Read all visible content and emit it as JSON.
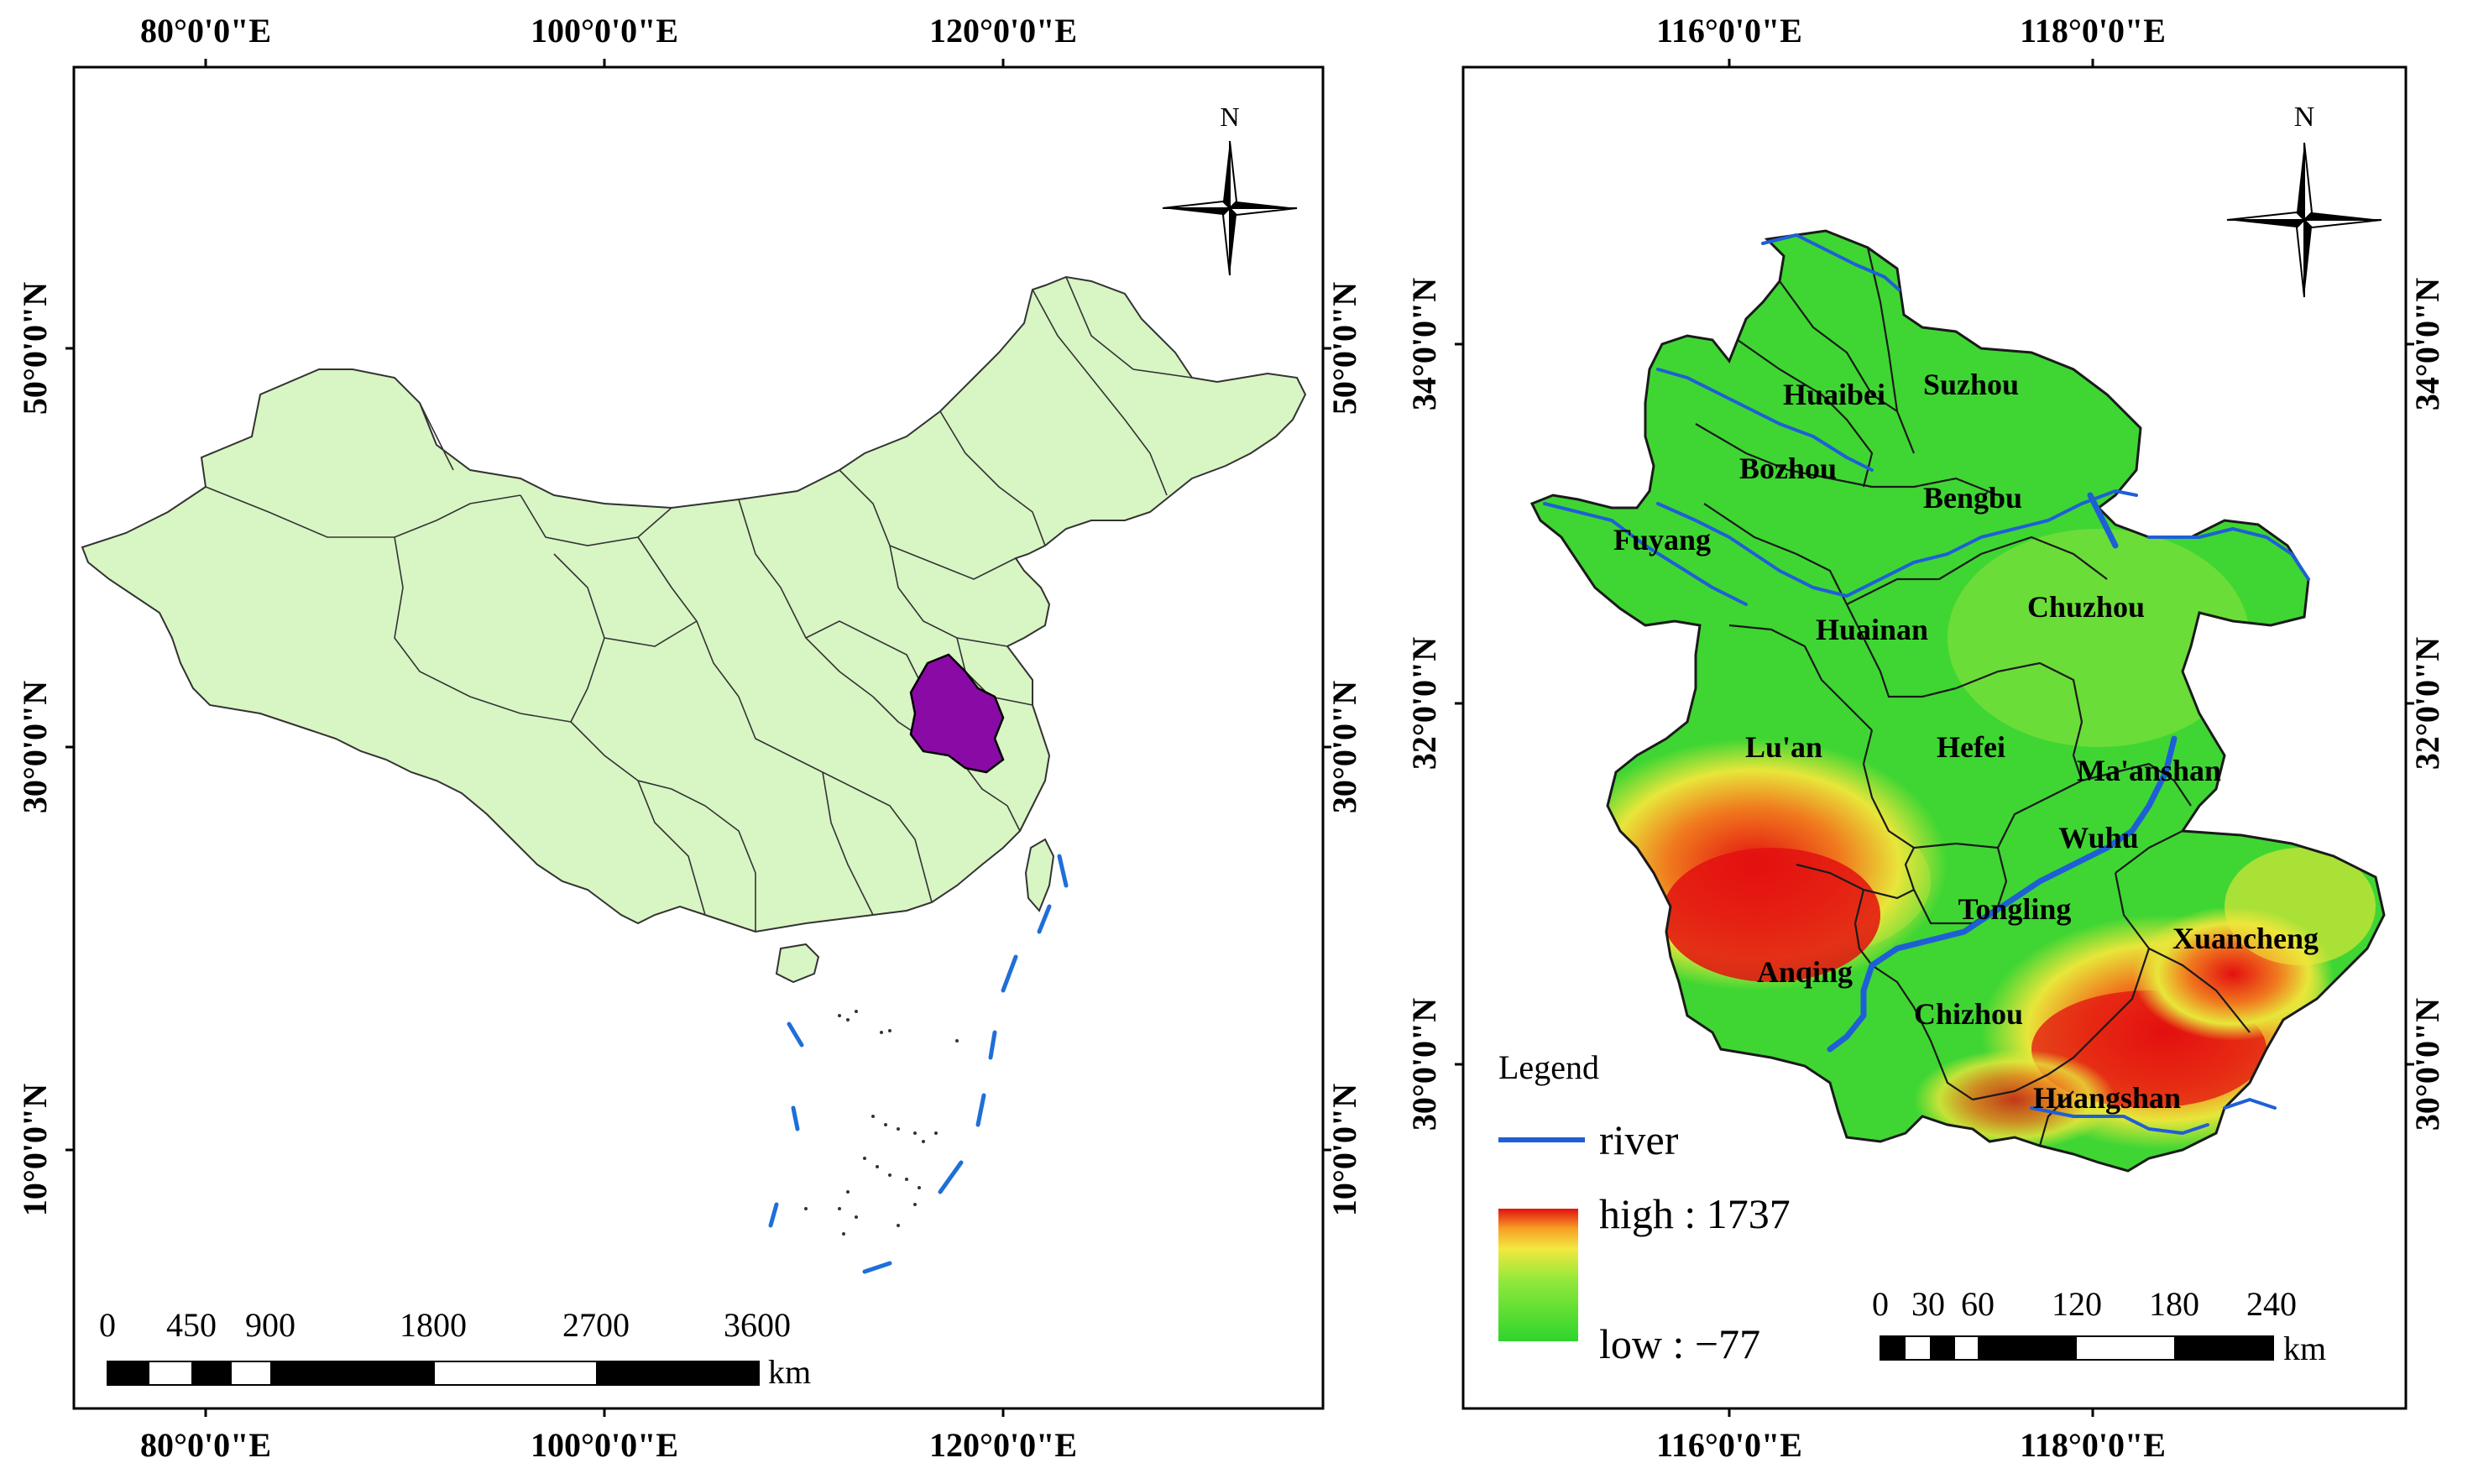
{
  "left_panel": {
    "top_lon_ticks": [
      "80°0'0\"E",
      "100°0'0\"E",
      "120°0'0\"E"
    ],
    "bottom_lon_ticks": [
      "80°0'0\"E",
      "100°0'0\"E",
      "120°0'0\"E"
    ],
    "left_lat_ticks": [
      "50°0'0\"N",
      "30°0'0\"N",
      "10°0'0\"N"
    ],
    "right_lat_ticks": [
      "50°0'0\"N",
      "30°0'0\"N",
      "10°0'0\"N"
    ],
    "north_label": "N",
    "scale_bar": {
      "labels": [
        "0",
        "450",
        "900",
        "1800",
        "2700",
        "3600"
      ],
      "unit": "km"
    },
    "colors": {
      "country": "#d8f5c4",
      "highlight": "#8a0aa6",
      "dash_line": "#1e6fd8"
    }
  },
  "right_panel": {
    "top_lon_ticks": [
      "116°0'0\"E",
      "118°0'0\"E"
    ],
    "bottom_lon_ticks": [
      "116°0'0\"E",
      "118°0'0\"E"
    ],
    "left_lat_ticks": [
      "34°0'0\"N",
      "32°0'0\"N",
      "30°0'0\"N"
    ],
    "right_lat_ticks": [
      "34°0'0\"N",
      "32°0'0\"N",
      "30°0'0\"N"
    ],
    "north_label": "N",
    "cities": [
      "Suzhou",
      "Huaibei",
      "Bozhou",
      "Bengbu",
      "Fuyang",
      "Chuzhou",
      "Huainan",
      "Lu'an",
      "Hefei",
      "Ma'anshan",
      "Wuhu",
      "Tongling",
      "Xuancheng",
      "Anqing",
      "Chizhou",
      "Huangshan"
    ],
    "legend": {
      "title": "Legend",
      "river_label": "river",
      "high_label": "high : 1737",
      "low_label": "low : −77",
      "elevation_high": 1737,
      "elevation_low": -77
    },
    "scale_bar": {
      "labels": [
        "0",
        "30",
        "60",
        "120",
        "180",
        "240"
      ],
      "unit": "km"
    },
    "colors": {
      "low": "#2ed52e",
      "mid": "#c8e832",
      "high": "#e31010",
      "river": "#1f5fd6"
    }
  }
}
